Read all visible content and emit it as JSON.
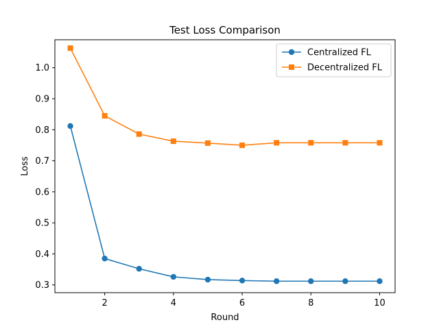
{
  "chart_data": {
    "type": "line",
    "title": "Test Loss Comparison",
    "xlabel": "Round",
    "ylabel": "Loss",
    "x": [
      1,
      2,
      3,
      4,
      5,
      6,
      7,
      8,
      9,
      10
    ],
    "xticks": [
      2,
      4,
      6,
      8,
      10
    ],
    "yticks": [
      0.3,
      0.4,
      0.5,
      0.6,
      0.7,
      0.8,
      0.9,
      1.0
    ],
    "xlim": [
      0.55,
      10.45
    ],
    "ylim": [
      0.275,
      1.09
    ],
    "grid": false,
    "legend_position": "top-right",
    "series": [
      {
        "name": "Centralized FL",
        "color": "#1f77b4",
        "marker": "circle",
        "values": [
          0.812,
          0.385,
          0.352,
          0.326,
          0.317,
          0.314,
          0.312,
          0.312,
          0.312,
          0.312
        ]
      },
      {
        "name": "Decentralized FL",
        "color": "#ff7f0e",
        "marker": "square",
        "values": [
          1.063,
          0.845,
          0.786,
          0.763,
          0.757,
          0.75,
          0.758,
          0.758,
          0.758,
          0.758
        ]
      }
    ]
  }
}
